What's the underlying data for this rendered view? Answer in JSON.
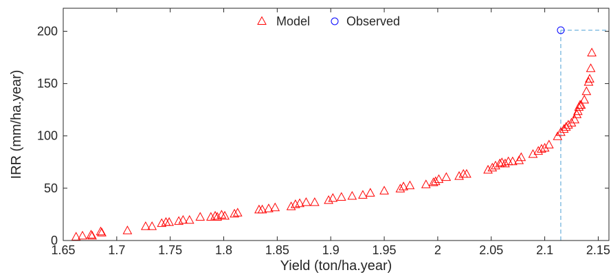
{
  "chart_data": {
    "type": "scatter",
    "title": "",
    "xlabel": "Yield (ton/ha.year)",
    "ylabel": "IRR (mm/ha.year)",
    "xlim": [
      1.65,
      2.16
    ],
    "ylim": [
      0,
      222
    ],
    "x_ticks": [
      1.65,
      1.7,
      1.75,
      1.8,
      1.85,
      1.9,
      1.95,
      2,
      2.05,
      2.1,
      2.15
    ],
    "x_tick_labels": [
      "1.65",
      "1.7",
      "1.75",
      "1.8",
      "1.85",
      "1.9",
      "1.95",
      "2",
      "2.05",
      "2.1",
      "2.15"
    ],
    "y_ticks": [
      0,
      50,
      100,
      150,
      200
    ],
    "y_tick_labels": [
      "0",
      "50",
      "100",
      "150",
      "200"
    ],
    "grid": false,
    "legend_position": "top-center",
    "series": [
      {
        "name": "Model",
        "marker": "triangle",
        "color": "#ff0000",
        "x": [
          1.662,
          1.668,
          1.676,
          1.677,
          1.685,
          1.686,
          1.71,
          1.727,
          1.733,
          1.742,
          1.746,
          1.749,
          1.758,
          1.762,
          1.768,
          1.778,
          1.788,
          1.792,
          1.794,
          1.798,
          1.801,
          1.81,
          1.813,
          1.833,
          1.836,
          1.842,
          1.848,
          1.863,
          1.867,
          1.871,
          1.877,
          1.885,
          1.898,
          1.902,
          1.91,
          1.92,
          1.93,
          1.937,
          1.95,
          1.965,
          1.968,
          1.974,
          1.989,
          1.996,
          1.998,
          2.001,
          2.008,
          2.02,
          2.024,
          2.027,
          2.047,
          2.051,
          2.054,
          2.058,
          2.06,
          2.063,
          2.066,
          2.07,
          2.076,
          2.078,
          2.089,
          2.094,
          2.097,
          2.1,
          2.104,
          2.112,
          2.115,
          2.118,
          2.12,
          2.122,
          2.125,
          2.128,
          2.13,
          2.131,
          2.132,
          2.133,
          2.134,
          2.137,
          2.139,
          2.141,
          2.142,
          2.143,
          2.144
        ],
        "y": [
          4,
          5,
          6,
          5,
          9,
          8,
          10,
          14,
          14,
          17,
          18,
          18,
          19,
          20,
          20,
          23,
          23,
          24,
          23,
          25,
          24,
          26,
          27,
          30,
          30,
          31,
          32,
          33,
          35,
          36,
          37,
          37,
          39,
          41,
          42,
          43,
          44,
          46,
          48,
          50,
          52,
          53,
          54,
          56,
          57,
          59,
          61,
          62,
          64,
          64,
          68,
          70,
          72,
          74,
          75,
          74,
          76,
          76,
          77,
          80,
          83,
          86,
          88,
          89,
          92,
          100,
          104,
          107,
          109,
          111,
          113,
          116,
          121,
          124,
          128,
          130,
          130,
          135,
          143,
          152,
          155,
          165,
          180
        ]
      },
      {
        "name": "Observed",
        "marker": "circle",
        "color": "#0000ff",
        "x": [
          2.115
        ],
        "y": [
          201
        ]
      }
    ],
    "reference_lines": {
      "style": "dashed",
      "color": "#4a9fd4",
      "vertical_at_x": 2.115,
      "horizontal_at_y": 201
    }
  }
}
